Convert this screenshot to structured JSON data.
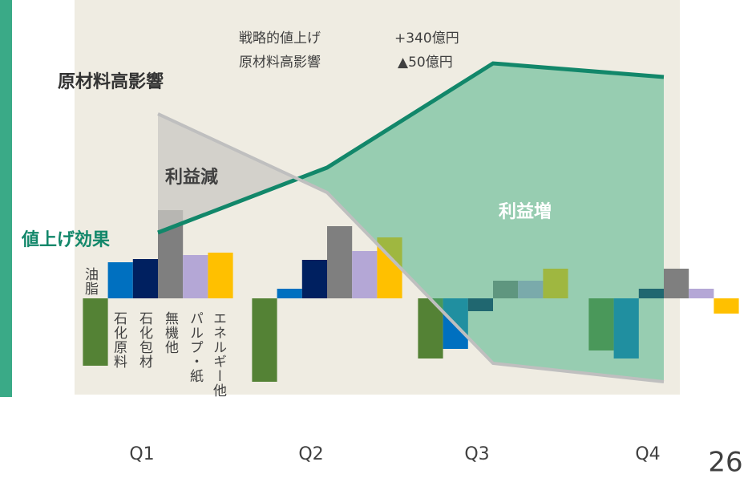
{
  "chart_data": {
    "type": "bar",
    "categories": [
      "Q1",
      "Q2",
      "Q3",
      "Q4"
    ],
    "ylim": [
      -120,
      372
    ],
    "series": [
      {
        "name": "石化原料",
        "color": "#548235",
        "values": [
          -84,
          -104,
          -75,
          -65
        ]
      },
      {
        "name": "油脂",
        "color": "#0070c0",
        "values": [
          45,
          12,
          -63,
          -75
        ]
      },
      {
        "name": "石化包材",
        "color": "#002060",
        "values": [
          49,
          48,
          -16,
          12
        ]
      },
      {
        "name": "無機他",
        "color": "#7f7f7f",
        "values": [
          110,
          90,
          22,
          37
        ]
      },
      {
        "name": "パルプ・紙",
        "color": "#b4a7d6",
        "values": [
          54,
          59,
          22,
          12
        ]
      },
      {
        "name": "エネルギー他",
        "color": "#ffc000",
        "values": [
          57,
          76,
          37,
          -19
        ]
      }
    ],
    "lines": [
      {
        "name": "値上げ効果",
        "color": "#12876a",
        "values": [
          82,
          163,
          293,
          276
        ]
      },
      {
        "name": "原材料高影響",
        "color": "#bfbfbf",
        "values": [
          230,
          132,
          -81,
          -104
        ]
      }
    ],
    "area_labels": {
      "loss": "利益減",
      "gain": "利益増"
    },
    "annotations": [
      "戦略的値上げ",
      "+340億円",
      "原材料高影響",
      "▲50億円"
    ]
  },
  "page_number": "26"
}
